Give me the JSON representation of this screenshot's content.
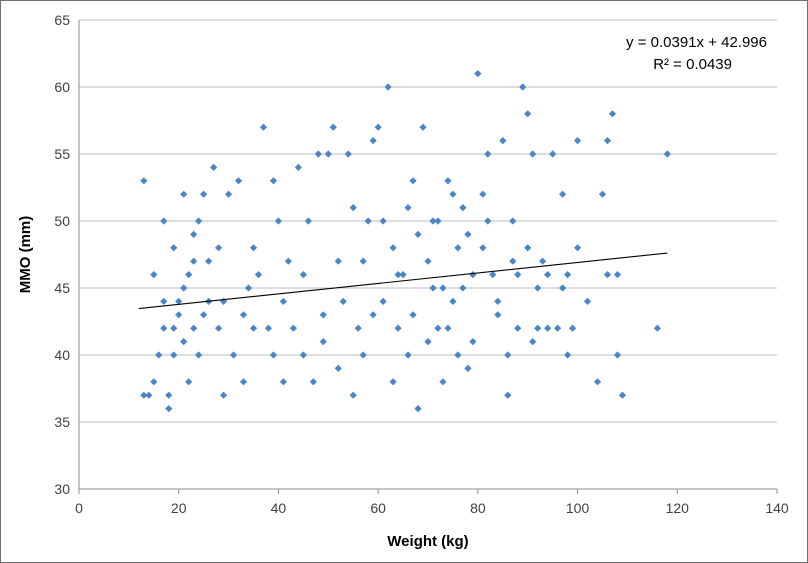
{
  "chart_data": {
    "type": "scatter",
    "title": "",
    "xlabel": "Weight (kg)",
    "ylabel": "MMO (mm)",
    "xlim": [
      0,
      140
    ],
    "ylim": [
      30,
      65
    ],
    "xticks": [
      "0",
      "20",
      "40",
      "60",
      "80",
      "100",
      "120",
      "140"
    ],
    "yticks": [
      "30",
      "35",
      "40",
      "45",
      "50",
      "55",
      "60",
      "65"
    ],
    "grid": "horizontal",
    "legend": "none",
    "marker_color": "#4a86c5",
    "trendline": {
      "slope": 0.0391,
      "intercept": 42.996,
      "x_range": [
        12,
        118
      ],
      "color": "#000000",
      "equation_label": "y = 0.0391x + 42.996",
      "r2_label": "R² = 0.0439"
    },
    "series": [
      {
        "points": [
          [
            13,
            53
          ],
          [
            13,
            37
          ],
          [
            14,
            37
          ],
          [
            15,
            38
          ],
          [
            16,
            40
          ],
          [
            17,
            42
          ],
          [
            17,
            44
          ],
          [
            18,
            37
          ],
          [
            18,
            36
          ],
          [
            19,
            40
          ],
          [
            19,
            42
          ],
          [
            20,
            43
          ],
          [
            20,
            44
          ],
          [
            21,
            45
          ],
          [
            21,
            41
          ],
          [
            22,
            46
          ],
          [
            22,
            38
          ],
          [
            23,
            42
          ],
          [
            23,
            47
          ],
          [
            24,
            50
          ],
          [
            25,
            43
          ],
          [
            25,
            52
          ],
          [
            26,
            44
          ],
          [
            27,
            54
          ],
          [
            28,
            42
          ],
          [
            28,
            48
          ],
          [
            29,
            37
          ],
          [
            30,
            52
          ],
          [
            31,
            40
          ],
          [
            32,
            53
          ],
          [
            33,
            43
          ],
          [
            34,
            45
          ],
          [
            35,
            42
          ],
          [
            36,
            46
          ],
          [
            37,
            57
          ],
          [
            38,
            42
          ],
          [
            39,
            53
          ],
          [
            40,
            50
          ],
          [
            41,
            44
          ],
          [
            42,
            47
          ],
          [
            43,
            42
          ],
          [
            44,
            54
          ],
          [
            45,
            40
          ],
          [
            46,
            50
          ],
          [
            47,
            38
          ],
          [
            48,
            55
          ],
          [
            49,
            43
          ],
          [
            50,
            55
          ],
          [
            51,
            57
          ],
          [
            52,
            47
          ],
          [
            53,
            44
          ],
          [
            54,
            55
          ],
          [
            55,
            37
          ],
          [
            56,
            42
          ],
          [
            57,
            47
          ],
          [
            58,
            50
          ],
          [
            59,
            56
          ],
          [
            60,
            57
          ],
          [
            61,
            44
          ],
          [
            62,
            60
          ],
          [
            63,
            48
          ],
          [
            64,
            42
          ],
          [
            65,
            46
          ],
          [
            66,
            51
          ],
          [
            67,
            53
          ],
          [
            68,
            36
          ],
          [
            69,
            57
          ],
          [
            70,
            47
          ],
          [
            71,
            50
          ],
          [
            72,
            42
          ],
          [
            73,
            45
          ],
          [
            74,
            53
          ],
          [
            75,
            44
          ],
          [
            76,
            48
          ],
          [
            77,
            51
          ],
          [
            78,
            39
          ],
          [
            79,
            46
          ],
          [
            80,
            61
          ],
          [
            81,
            52
          ],
          [
            82,
            55
          ],
          [
            83,
            46
          ],
          [
            84,
            43
          ],
          [
            85,
            56
          ],
          [
            86,
            37
          ],
          [
            87,
            47
          ],
          [
            88,
            42
          ],
          [
            89,
            60
          ],
          [
            90,
            58
          ],
          [
            91,
            55
          ],
          [
            92,
            42
          ],
          [
            93,
            47
          ],
          [
            94,
            46
          ],
          [
            95,
            55
          ],
          [
            96,
            42
          ],
          [
            97,
            52
          ],
          [
            98,
            40
          ],
          [
            99,
            42
          ],
          [
            100,
            56
          ],
          [
            102,
            44
          ],
          [
            104,
            38
          ],
          [
            105,
            52
          ],
          [
            106,
            56
          ],
          [
            107,
            58
          ],
          [
            108,
            40
          ],
          [
            109,
            37
          ],
          [
            116,
            42
          ],
          [
            118,
            55
          ],
          [
            15,
            46
          ],
          [
            17,
            50
          ],
          [
            19,
            48
          ],
          [
            21,
            52
          ],
          [
            23,
            49
          ],
          [
            24,
            40
          ],
          [
            26,
            47
          ],
          [
            29,
            44
          ],
          [
            33,
            38
          ],
          [
            35,
            48
          ],
          [
            39,
            40
          ],
          [
            41,
            38
          ],
          [
            45,
            46
          ],
          [
            49,
            41
          ],
          [
            52,
            39
          ],
          [
            55,
            51
          ],
          [
            57,
            40
          ],
          [
            59,
            43
          ],
          [
            61,
            50
          ],
          [
            63,
            38
          ],
          [
            64,
            46
          ],
          [
            66,
            40
          ],
          [
            67,
            43
          ],
          [
            68,
            49
          ],
          [
            70,
            41
          ],
          [
            71,
            45
          ],
          [
            72,
            50
          ],
          [
            73,
            38
          ],
          [
            74,
            42
          ],
          [
            75,
            52
          ],
          [
            76,
            40
          ],
          [
            77,
            45
          ],
          [
            78,
            49
          ],
          [
            79,
            41
          ],
          [
            81,
            48
          ],
          [
            82,
            50
          ],
          [
            84,
            44
          ],
          [
            86,
            40
          ],
          [
            87,
            50
          ],
          [
            88,
            46
          ],
          [
            90,
            48
          ],
          [
            91,
            41
          ],
          [
            94,
            42
          ],
          [
            97,
            45
          ],
          [
            100,
            48
          ],
          [
            106,
            46
          ],
          [
            108,
            46
          ],
          [
            98,
            46
          ],
          [
            92,
            45
          ]
        ]
      }
    ]
  }
}
